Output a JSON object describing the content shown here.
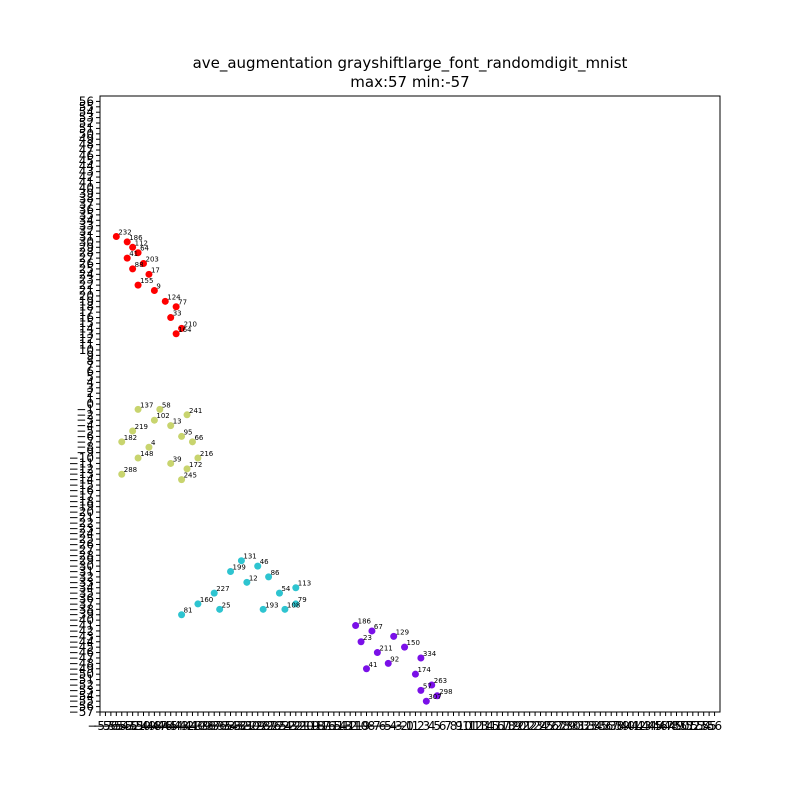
{
  "chart_data": {
    "type": "scatter",
    "title": "ave_augmentation grayshiftlarge_font_randomdigit_mnist",
    "subtitle": "max:57 min:-57",
    "xlim": [
      -57,
      57
    ],
    "ylim": [
      -57,
      57
    ],
    "x_ticks": [
      -57,
      -56,
      -55,
      -54,
      -53,
      -52,
      -51,
      -50,
      -49,
      -48,
      -47,
      -46,
      -45,
      -44,
      -43,
      -42,
      -41,
      -40,
      -39,
      -38,
      -37,
      -36,
      -35,
      -34,
      -33,
      -32,
      -31,
      -30,
      -29,
      -28,
      -27,
      -26,
      -25,
      -24,
      -23,
      -22,
      -21,
      -20,
      -19,
      -18,
      -17,
      -16,
      -15,
      -14,
      -13,
      -12,
      -11,
      -10,
      -9,
      -8,
      -7,
      -6,
      -5,
      -4,
      -3,
      -2,
      -1,
      0,
      1,
      2,
      3,
      4,
      5,
      6,
      7,
      8,
      9,
      10,
      11,
      12,
      13,
      14,
      15,
      16,
      17,
      18,
      19,
      20,
      21,
      22,
      23,
      24,
      25,
      26,
      27,
      28,
      29,
      30,
      31,
      32,
      33,
      34,
      35,
      36,
      37,
      38,
      39,
      40,
      41,
      42,
      43,
      44,
      45,
      46,
      47,
      48,
      49,
      50,
      51,
      52,
      53,
      54,
      55,
      56
    ],
    "y_ticks": [
      -57,
      -56,
      -55,
      -54,
      -53,
      -52,
      -51,
      -50,
      -49,
      -48,
      -47,
      -46,
      -45,
      -44,
      -43,
      -42,
      -41,
      -40,
      -39,
      -38,
      -37,
      -36,
      -35,
      -34,
      -33,
      -32,
      -31,
      -30,
      -29,
      -28,
      -27,
      -26,
      -25,
      -24,
      -23,
      -22,
      -21,
      -20,
      -19,
      -18,
      -17,
      -16,
      -15,
      -14,
      -13,
      -12,
      -11,
      -10,
      -9,
      -8,
      -7,
      -6,
      -5,
      -4,
      -3,
      -2,
      -1,
      0,
      1,
      2,
      3,
      4,
      5,
      6,
      7,
      8,
      9,
      10,
      11,
      12,
      13,
      14,
      15,
      16,
      17,
      18,
      19,
      20,
      21,
      22,
      23,
      24,
      25,
      26,
      27,
      28,
      29,
      30,
      31,
      32,
      33,
      34,
      35,
      36,
      37,
      38,
      39,
      40,
      41,
      42,
      43,
      44,
      45,
      46,
      47,
      48,
      49,
      50,
      51,
      52,
      53,
      54,
      55,
      56
    ],
    "grid": false,
    "series": [
      {
        "color": "#ff0000",
        "points": [
          {
            "x": -54,
            "y": 31,
            "label": "232"
          },
          {
            "x": -52,
            "y": 30,
            "label": "186"
          },
          {
            "x": -51,
            "y": 29,
            "label": "112"
          },
          {
            "x": -50,
            "y": 28,
            "label": "64"
          },
          {
            "x": -52,
            "y": 27,
            "label": "41"
          },
          {
            "x": -49,
            "y": 26,
            "label": "203"
          },
          {
            "x": -51,
            "y": 25,
            "label": "88"
          },
          {
            "x": -48,
            "y": 24,
            "label": "17"
          },
          {
            "x": -50,
            "y": 22,
            "label": "155"
          },
          {
            "x": -47,
            "y": 21,
            "label": "9"
          },
          {
            "x": -45,
            "y": 19,
            "label": "124"
          },
          {
            "x": -43,
            "y": 18,
            "label": "77"
          },
          {
            "x": -44,
            "y": 16,
            "label": "33"
          },
          {
            "x": -42,
            "y": 14,
            "label": "210"
          },
          {
            "x": -43,
            "y": 13,
            "label": "164"
          }
        ]
      },
      {
        "color": "#c8d46e",
        "points": [
          {
            "x": -50,
            "y": -1,
            "label": "137"
          },
          {
            "x": -46,
            "y": -1,
            "label": "58"
          },
          {
            "x": -41,
            "y": -2,
            "label": "241"
          },
          {
            "x": -47,
            "y": -3,
            "label": "102"
          },
          {
            "x": -44,
            "y": -4,
            "label": "13"
          },
          {
            "x": -51,
            "y": -5,
            "label": "219"
          },
          {
            "x": -42,
            "y": -6,
            "label": "95"
          },
          {
            "x": -53,
            "y": -7,
            "label": "182"
          },
          {
            "x": -40,
            "y": -7,
            "label": "66"
          },
          {
            "x": -48,
            "y": -8,
            "label": "4"
          },
          {
            "x": -50,
            "y": -10,
            "label": "148"
          },
          {
            "x": -39,
            "y": -10,
            "label": "216"
          },
          {
            "x": -44,
            "y": -11,
            "label": "39"
          },
          {
            "x": -41,
            "y": -12,
            "label": "172"
          },
          {
            "x": -53,
            "y": -13,
            "label": "288"
          },
          {
            "x": -42,
            "y": -14,
            "label": "245"
          }
        ]
      },
      {
        "color": "#2ec4d0",
        "points": [
          {
            "x": -31,
            "y": -29,
            "label": "131"
          },
          {
            "x": -28,
            "y": -30,
            "label": "46"
          },
          {
            "x": -33,
            "y": -31,
            "label": "199"
          },
          {
            "x": -26,
            "y": -32,
            "label": "86"
          },
          {
            "x": -30,
            "y": -33,
            "label": "12"
          },
          {
            "x": -21,
            "y": -34,
            "label": "113"
          },
          {
            "x": -36,
            "y": -35,
            "label": "227"
          },
          {
            "x": -24,
            "y": -35,
            "label": "54"
          },
          {
            "x": -39,
            "y": -37,
            "label": "160"
          },
          {
            "x": -21,
            "y": -37,
            "label": "79"
          },
          {
            "x": -35,
            "y": -38,
            "label": "25"
          },
          {
            "x": -27,
            "y": -38,
            "label": "193"
          },
          {
            "x": -42,
            "y": -39,
            "label": "81"
          },
          {
            "x": -23,
            "y": -38,
            "label": "108"
          }
        ]
      },
      {
        "color": "#7a10e8",
        "points": [
          {
            "x": -10,
            "y": -41,
            "label": "186"
          },
          {
            "x": -7,
            "y": -42,
            "label": "67"
          },
          {
            "x": -3,
            "y": -43,
            "label": "129"
          },
          {
            "x": -9,
            "y": -44,
            "label": "23"
          },
          {
            "x": -1,
            "y": -45,
            "label": "150"
          },
          {
            "x": -6,
            "y": -46,
            "label": "211"
          },
          {
            "x": 2,
            "y": -47,
            "label": "334"
          },
          {
            "x": -4,
            "y": -48,
            "label": "92"
          },
          {
            "x": -8,
            "y": -49,
            "label": "41"
          },
          {
            "x": 1,
            "y": -50,
            "label": "174"
          },
          {
            "x": 4,
            "y": -52,
            "label": "263"
          },
          {
            "x": 2,
            "y": -53,
            "label": "57"
          },
          {
            "x": 5,
            "y": -54,
            "label": "298"
          },
          {
            "x": 3,
            "y": -55,
            "label": "307"
          }
        ]
      }
    ]
  }
}
